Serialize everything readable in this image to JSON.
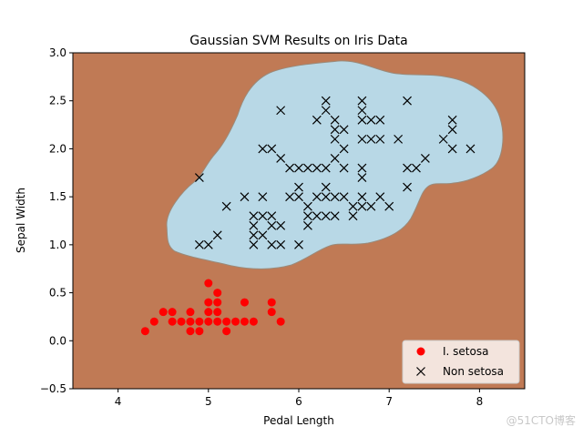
{
  "chart_data": {
    "type": "scatter",
    "title": "Gaussian SVM Results on Iris Data",
    "xlabel": "Pedal Length",
    "ylabel": "Sepal Width",
    "xlim": [
      3.5,
      8.5
    ],
    "ylim": [
      -0.5,
      3.0
    ],
    "xticks": [
      4,
      5,
      6,
      7,
      8
    ],
    "yticks": [
      -0.5,
      0.0,
      0.5,
      1.0,
      1.5,
      2.0,
      2.5,
      3.0
    ],
    "xtick_labels": [
      "4",
      "5",
      "6",
      "7",
      "8"
    ],
    "ytick_labels": [
      "−0.5",
      "0.0",
      "0.5",
      "1.0",
      "1.5",
      "2.0",
      "2.5",
      "3.0"
    ],
    "grid": false,
    "legend_position": "lower-right",
    "background_class_color": "#c07a55",
    "region_class_color": "#b8d8e6",
    "series": [
      {
        "name": "I. setosa",
        "marker": "circle",
        "color": "#ff0000",
        "points": [
          [
            4.3,
            0.1
          ],
          [
            4.4,
            0.2
          ],
          [
            4.5,
            0.3
          ],
          [
            4.6,
            0.2
          ],
          [
            4.6,
            0.3
          ],
          [
            4.7,
            0.2
          ],
          [
            4.8,
            0.1
          ],
          [
            4.8,
            0.2
          ],
          [
            4.8,
            0.3
          ],
          [
            4.9,
            0.1
          ],
          [
            4.9,
            0.2
          ],
          [
            5.0,
            0.2
          ],
          [
            5.0,
            0.3
          ],
          [
            5.0,
            0.4
          ],
          [
            5.0,
            0.6
          ],
          [
            5.1,
            0.2
          ],
          [
            5.1,
            0.3
          ],
          [
            5.1,
            0.4
          ],
          [
            5.1,
            0.5
          ],
          [
            5.2,
            0.1
          ],
          [
            5.2,
            0.2
          ],
          [
            5.3,
            0.2
          ],
          [
            5.4,
            0.2
          ],
          [
            5.4,
            0.4
          ],
          [
            5.5,
            0.2
          ],
          [
            5.7,
            0.3
          ],
          [
            5.7,
            0.4
          ],
          [
            5.8,
            0.2
          ]
        ]
      },
      {
        "name": "Non setosa",
        "marker": "x",
        "color": "#000000",
        "points": [
          [
            4.9,
            1.7
          ],
          [
            4.9,
            1.0
          ],
          [
            5.0,
            1.0
          ],
          [
            5.1,
            1.1
          ],
          [
            5.2,
            1.4
          ],
          [
            5.4,
            1.5
          ],
          [
            5.5,
            1.3
          ],
          [
            5.5,
            1.2
          ],
          [
            5.5,
            1.0
          ],
          [
            5.5,
            1.1
          ],
          [
            5.6,
            1.3
          ],
          [
            5.6,
            1.5
          ],
          [
            5.6,
            2.0
          ],
          [
            5.6,
            1.1
          ],
          [
            5.7,
            1.3
          ],
          [
            5.7,
            1.0
          ],
          [
            5.7,
            2.0
          ],
          [
            5.7,
            1.2
          ],
          [
            5.8,
            1.2
          ],
          [
            5.8,
            1.0
          ],
          [
            5.8,
            1.9
          ],
          [
            5.8,
            2.4
          ],
          [
            5.9,
            1.5
          ],
          [
            5.9,
            1.8
          ],
          [
            6.0,
            1.5
          ],
          [
            6.0,
            1.0
          ],
          [
            6.0,
            1.6
          ],
          [
            6.0,
            1.8
          ],
          [
            6.1,
            1.4
          ],
          [
            6.1,
            1.3
          ],
          [
            6.1,
            1.2
          ],
          [
            6.1,
            1.8
          ],
          [
            6.2,
            1.5
          ],
          [
            6.2,
            1.3
          ],
          [
            6.2,
            2.3
          ],
          [
            6.2,
            1.8
          ],
          [
            6.3,
            1.5
          ],
          [
            6.3,
            1.6
          ],
          [
            6.3,
            1.3
          ],
          [
            6.3,
            2.5
          ],
          [
            6.3,
            2.4
          ],
          [
            6.3,
            1.8
          ],
          [
            6.4,
            1.5
          ],
          [
            6.4,
            1.3
          ],
          [
            6.4,
            2.3
          ],
          [
            6.4,
            2.1
          ],
          [
            6.4,
            2.2
          ],
          [
            6.4,
            1.9
          ],
          [
            6.5,
            1.5
          ],
          [
            6.5,
            2.0
          ],
          [
            6.5,
            2.2
          ],
          [
            6.5,
            1.8
          ],
          [
            6.6,
            1.4
          ],
          [
            6.6,
            1.3
          ],
          [
            6.7,
            1.4
          ],
          [
            6.7,
            1.5
          ],
          [
            6.7,
            1.7
          ],
          [
            6.7,
            1.8
          ],
          [
            6.7,
            2.1
          ],
          [
            6.7,
            2.3
          ],
          [
            6.7,
            2.4
          ],
          [
            6.7,
            2.5
          ],
          [
            6.8,
            1.4
          ],
          [
            6.8,
            2.1
          ],
          [
            6.8,
            2.3
          ],
          [
            6.9,
            1.5
          ],
          [
            6.9,
            2.1
          ],
          [
            6.9,
            2.3
          ],
          [
            7.0,
            1.4
          ],
          [
            7.1,
            2.1
          ],
          [
            7.2,
            1.8
          ],
          [
            7.2,
            1.6
          ],
          [
            7.2,
            2.5
          ],
          [
            7.3,
            1.8
          ],
          [
            7.4,
            1.9
          ],
          [
            7.6,
            2.1
          ],
          [
            7.7,
            2.3
          ],
          [
            7.7,
            2.2
          ],
          [
            7.7,
            2.0
          ],
          [
            7.9,
            2.0
          ]
        ]
      }
    ]
  },
  "watermark": "@51CTO博客"
}
